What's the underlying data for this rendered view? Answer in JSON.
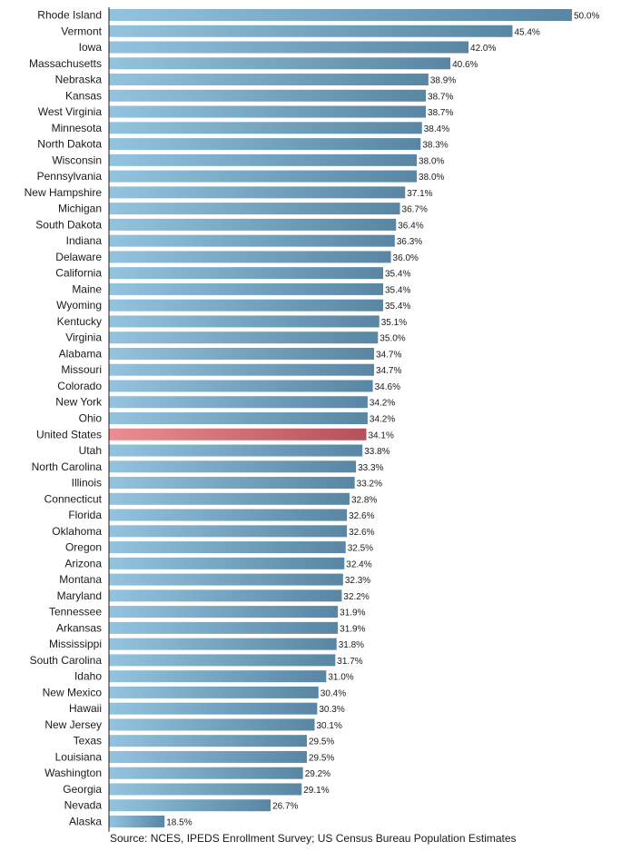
{
  "chart_data": {
    "type": "bar",
    "orientation": "horizontal",
    "categories": [
      "Rhode Island",
      "Vermont",
      "Iowa",
      "Massachusetts",
      "Nebraska",
      "Kansas",
      "West Virginia",
      "Minnesota",
      "North Dakota",
      "Wisconsin",
      "Pennsylvania",
      "New Hampshire",
      "Michigan",
      "South Dakota",
      "Indiana",
      "Delaware",
      "California",
      "Maine",
      "Wyoming",
      "Kentucky",
      "Virginia",
      "Alabama",
      "Missouri",
      "Colorado",
      "New York",
      "Ohio",
      "United States",
      "Utah",
      "North Carolina",
      "Illinois",
      "Connecticut",
      "Florida",
      "Oklahoma",
      "Oregon",
      "Arizona",
      "Montana",
      "Maryland",
      "Tennessee",
      "Arkansas",
      "Mississippi",
      "South Carolina",
      "Idaho",
      "New Mexico",
      "Hawaii",
      "New Jersey",
      "Texas",
      "Louisiana",
      "Washington",
      "Georgia",
      "Nevada",
      "Alaska"
    ],
    "values": [
      50.0,
      45.4,
      42.0,
      40.6,
      38.9,
      38.7,
      38.7,
      38.4,
      38.3,
      38.0,
      38.0,
      37.1,
      36.7,
      36.4,
      36.3,
      36.0,
      35.4,
      35.4,
      35.4,
      35.1,
      35.0,
      34.7,
      34.7,
      34.6,
      34.2,
      34.2,
      34.1,
      33.8,
      33.3,
      33.2,
      32.8,
      32.6,
      32.6,
      32.5,
      32.4,
      32.3,
      32.2,
      31.9,
      31.9,
      31.8,
      31.7,
      31.0,
      30.4,
      30.3,
      30.1,
      29.5,
      29.5,
      29.2,
      29.1,
      26.7,
      18.5
    ],
    "value_labels": [
      "50.0%",
      "45.4%",
      "42.0%",
      "40.6%",
      "38.9%",
      "38.7%",
      "38.7%",
      "38.4%",
      "38.3%",
      "38.0%",
      "38.0%",
      "37.1%",
      "36.7%",
      "36.4%",
      "36.3%",
      "36.0%",
      "35.4%",
      "35.4%",
      "35.4%",
      "35.1%",
      "35.0%",
      "34.7%",
      "34.7%",
      "34.6%",
      "34.2%",
      "34.2%",
      "34.1%",
      "33.8%",
      "33.3%",
      "33.2%",
      "32.8%",
      "32.6%",
      "32.6%",
      "32.5%",
      "32.4%",
      "32.3%",
      "32.2%",
      "31.9%",
      "31.9%",
      "31.8%",
      "31.7%",
      "31.0%",
      "30.4%",
      "30.3%",
      "30.1%",
      "29.5%",
      "29.5%",
      "29.2%",
      "29.1%",
      "26.7%",
      "18.5%"
    ],
    "highlight": "United States",
    "xlim": [
      14.2,
      50.0
    ],
    "grid": false,
    "title": "",
    "xlabel": "",
    "ylabel": "",
    "source": "Source: NCES, IPEDS Enrollment Survey; US Census Bureau Population Estimates",
    "colors": {
      "bar_light": "#93c3de",
      "bar_dark": "#5886a3",
      "highlight_light": "#ea8e92",
      "highlight_dark": "#b6505a",
      "axis": "#1a1a1a"
    }
  }
}
